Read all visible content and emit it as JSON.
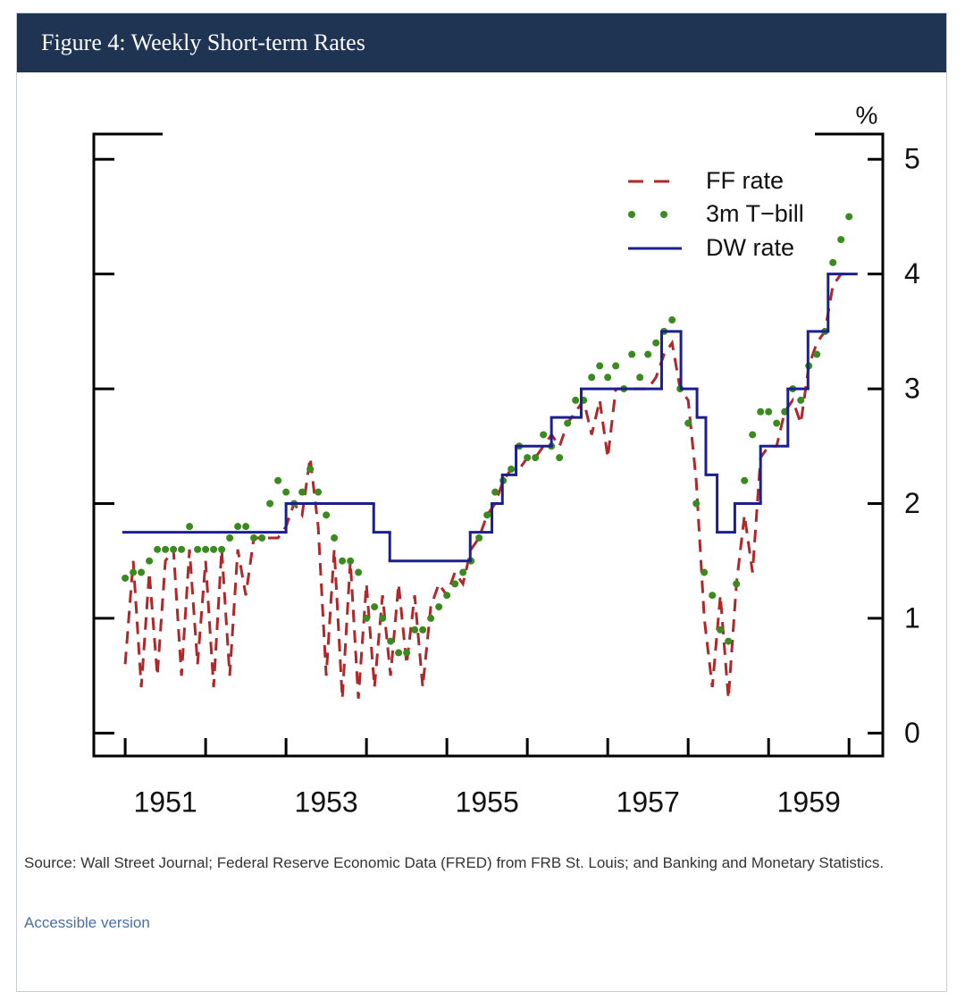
{
  "chart_data": {
    "type": "line",
    "title": "Figure 4: Weekly Short-term Rates",
    "y_label": "%",
    "source": "Source: Wall Street Journal; Federal Reserve Economic Data (FRED) from FRB St. Louis; and Banking and Monetary Statistics.",
    "link": "Accessible version",
    "xlim": [
      1950.61,
      1960.42
    ],
    "ylim": [
      -0.2,
      5.22
    ],
    "xticks": [
      1951,
      1952,
      1953,
      1954,
      1955,
      1956,
      1957,
      1958,
      1959,
      1960
    ],
    "xtick_labels": [
      {
        "value": 1951.5,
        "label": "1951"
      },
      {
        "value": 1953.5,
        "label": "1953"
      },
      {
        "value": 1955.5,
        "label": "1955"
      },
      {
        "value": 1957.5,
        "label": "1957"
      },
      {
        "value": 1959.5,
        "label": "1959"
      }
    ],
    "yticks": [
      0,
      1,
      2,
      3,
      4,
      5
    ],
    "legend": "top-right",
    "x": [
      1951.0,
      1951.1,
      1951.2,
      1951.3,
      1951.4,
      1951.5,
      1951.6,
      1951.7,
      1951.8,
      1951.9,
      1952.0,
      1952.1,
      1952.2,
      1952.3,
      1952.4,
      1952.5,
      1952.6,
      1952.7,
      1952.8,
      1952.9,
      1953.0,
      1953.1,
      1953.2,
      1953.3,
      1953.4,
      1953.5,
      1953.6,
      1953.7,
      1953.8,
      1953.9,
      1954.0,
      1954.1,
      1954.2,
      1954.3,
      1954.4,
      1954.5,
      1954.6,
      1954.7,
      1954.8,
      1954.9,
      1955.0,
      1955.1,
      1955.2,
      1955.3,
      1955.4,
      1955.5,
      1955.6,
      1955.7,
      1955.8,
      1955.9,
      1956.0,
      1956.1,
      1956.2,
      1956.3,
      1956.4,
      1956.5,
      1956.6,
      1956.7,
      1956.8,
      1956.9,
      1957.0,
      1957.1,
      1957.2,
      1957.3,
      1957.4,
      1957.5,
      1957.6,
      1957.7,
      1957.8,
      1957.9,
      1958.0,
      1958.1,
      1958.2,
      1958.3,
      1958.4,
      1958.5,
      1958.6,
      1958.7,
      1958.8,
      1958.9,
      1959.0,
      1959.1,
      1959.2,
      1959.3,
      1959.4,
      1959.5,
      1959.6,
      1959.7,
      1959.8,
      1959.9,
      1960.0
    ],
    "series": [
      {
        "name": "FF rate",
        "color": "#b0272a",
        "style": "dash",
        "values": [
          0.6,
          1.5,
          0.4,
          1.4,
          0.5,
          1.5,
          1.6,
          0.5,
          1.6,
          0.6,
          1.5,
          0.4,
          1.6,
          0.5,
          1.6,
          1.2,
          1.7,
          1.7,
          1.7,
          1.7,
          1.8,
          2.0,
          1.9,
          2.4,
          1.8,
          0.5,
          1.6,
          0.3,
          1.5,
          0.3,
          1.3,
          0.4,
          1.2,
          0.5,
          1.3,
          0.6,
          1.2,
          0.4,
          1.1,
          1.3,
          1.2,
          1.4,
          1.3,
          1.6,
          1.7,
          1.9,
          2.0,
          2.2,
          2.3,
          2.3,
          2.4,
          2.4,
          2.5,
          2.6,
          2.5,
          2.7,
          2.8,
          2.9,
          2.6,
          2.9,
          2.4,
          3.0,
          3.0,
          3.0,
          3.0,
          3.0,
          3.1,
          3.3,
          3.4,
          3.0,
          2.9,
          2.2,
          1.0,
          0.4,
          1.2,
          0.3,
          1.3,
          1.9,
          1.4,
          2.4,
          2.5,
          2.5,
          2.8,
          2.9,
          2.7,
          3.2,
          3.4,
          3.5,
          3.9,
          4.0,
          4.0
        ]
      },
      {
        "name": "3m T−bill",
        "color": "#3a8a1f",
        "style": "dot",
        "values": [
          1.35,
          1.4,
          1.4,
          1.5,
          1.6,
          1.6,
          1.6,
          1.6,
          1.8,
          1.6,
          1.6,
          1.6,
          1.6,
          1.7,
          1.8,
          1.8,
          1.7,
          1.7,
          2.0,
          2.2,
          2.1,
          2.0,
          2.1,
          2.3,
          2.1,
          1.9,
          1.7,
          1.5,
          1.5,
          1.4,
          1.0,
          1.1,
          1.0,
          0.8,
          0.7,
          0.7,
          0.9,
          0.9,
          1.0,
          1.1,
          1.2,
          1.3,
          1.4,
          1.5,
          1.7,
          1.9,
          2.1,
          2.2,
          2.3,
          2.5,
          2.4,
          2.4,
          2.6,
          2.5,
          2.4,
          2.7,
          2.9,
          2.9,
          3.1,
          3.2,
          3.1,
          3.2,
          3.0,
          3.3,
          3.1,
          3.3,
          3.4,
          3.5,
          3.6,
          3.0,
          2.7,
          2.0,
          1.4,
          1.2,
          0.9,
          0.8,
          1.3,
          2.2,
          2.6,
          2.8,
          2.8,
          2.7,
          2.8,
          3.0,
          2.9,
          3.2,
          3.3,
          3.5,
          4.1,
          4.3,
          4.5
        ]
      },
      {
        "name": "DW rate",
        "color": "#1c1f8f",
        "style": "step",
        "x": [
          1950.98,
          1953.0,
          1954.09,
          1954.29,
          1955.29,
          1955.56,
          1955.69,
          1955.86,
          1956.3,
          1956.67,
          1957.67,
          1957.91,
          1958.11,
          1958.22,
          1958.36,
          1958.58,
          1958.9,
          1959.24,
          1959.49,
          1959.74,
          1960.09
        ],
        "values": [
          1.75,
          2.0,
          1.75,
          1.5,
          1.75,
          2.0,
          2.25,
          2.5,
          2.75,
          3.0,
          3.5,
          3.0,
          2.75,
          2.25,
          1.75,
          2.0,
          2.5,
          3.0,
          3.5,
          4.0,
          4.0
        ]
      }
    ]
  }
}
